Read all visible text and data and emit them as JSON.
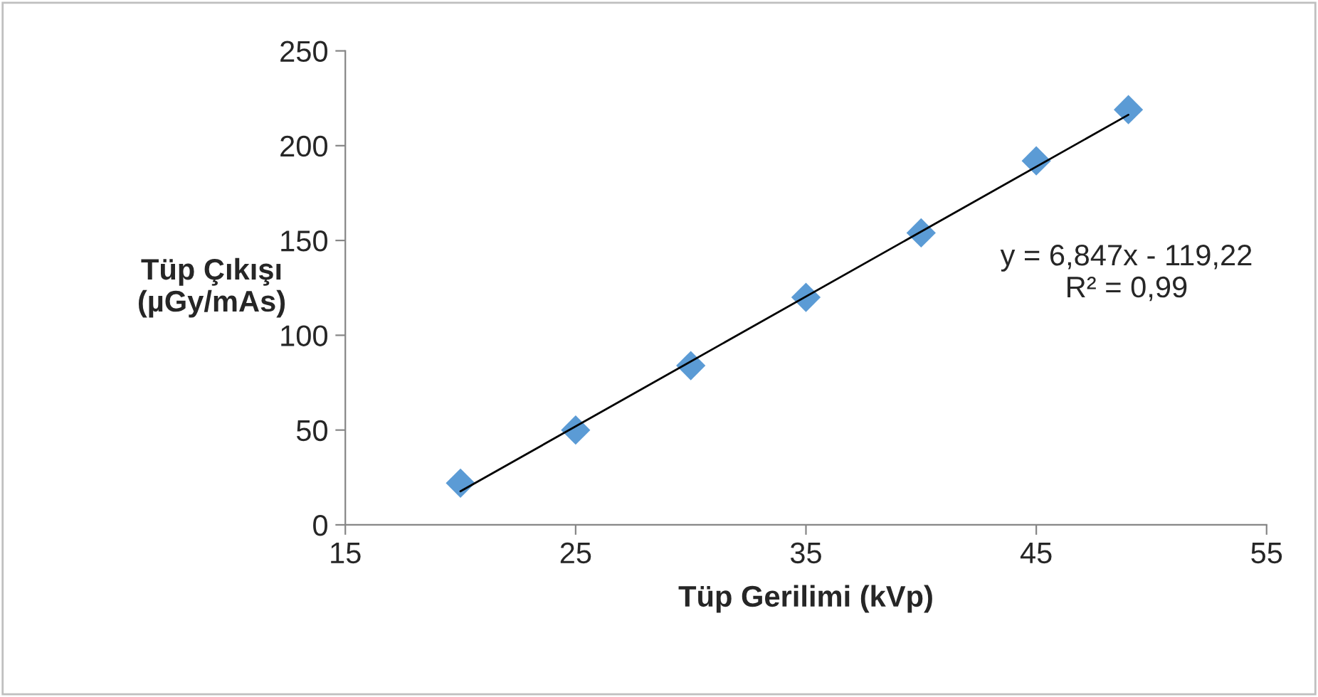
{
  "chart_data": {
    "type": "scatter",
    "xlabel": "Tüp Gerilimi (kVp)",
    "ylabel": "Tüp Çıkışı\n(µGy/mAs)",
    "x": [
      20,
      25,
      30,
      35,
      40,
      45,
      49
    ],
    "series": [
      {
        "color": "#5b9bd5",
        "marker": "diamond",
        "values": [
          22,
          50,
          84,
          120,
          154,
          192,
          219
        ]
      },
      {
        "type": "line",
        "color": "#000000",
        "marker": "none",
        "x": [
          20,
          49
        ],
        "values": [
          17.7,
          216.3
        ]
      }
    ],
    "annotations": [
      "y = 6,847x - 119,22\nR² = 0,99"
    ],
    "xlim": [
      15,
      55
    ],
    "xticks": [
      15,
      25,
      35,
      45,
      55
    ],
    "ylim": [
      0,
      250
    ],
    "yticks": [
      0,
      50,
      100,
      150,
      200,
      250
    ],
    "grid": false,
    "legend": false
  }
}
